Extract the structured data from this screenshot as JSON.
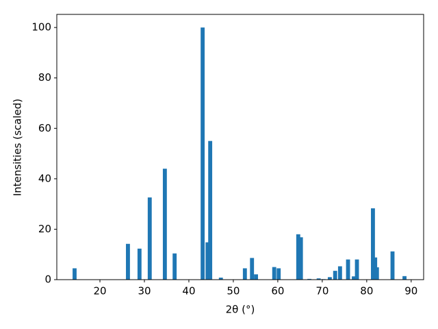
{
  "chart_data": {
    "type": "bar",
    "xlabel": "2θ (°)",
    "ylabel": "Intensities (scaled)",
    "color": "#1f77b4",
    "x": [
      14.3,
      26.3,
      28.9,
      31.2,
      34.6,
      36.8,
      43.1,
      44.2,
      44.8,
      47.2,
      52.6,
      54.2,
      55.1,
      59.2,
      60.2,
      64.6,
      65.2,
      67.1,
      69.2,
      70.3,
      71.7,
      72.9,
      74.0,
      75.8,
      77.1,
      77.8,
      81.4,
      81.9,
      82.3,
      85.8,
      88.5
    ],
    "values": [
      4.5,
      14.2,
      12.3,
      32.6,
      44,
      10.4,
      100,
      14.8,
      55,
      0.8,
      4.5,
      8.6,
      2.1,
      5,
      4.5,
      18,
      16.8,
      0.3,
      0.5,
      0.2,
      1,
      3.5,
      5.3,
      8,
      1.3,
      8,
      28.3,
      8.8,
      4.9,
      11.2,
      1.4
    ],
    "xlim": [
      10.3,
      92.8
    ],
    "ylim": [
      0,
      105.2
    ],
    "xticks": [
      20,
      30,
      40,
      50,
      60,
      70,
      80,
      90
    ],
    "yticks": [
      0,
      20,
      40,
      60,
      80,
      100
    ],
    "grid": false
  }
}
